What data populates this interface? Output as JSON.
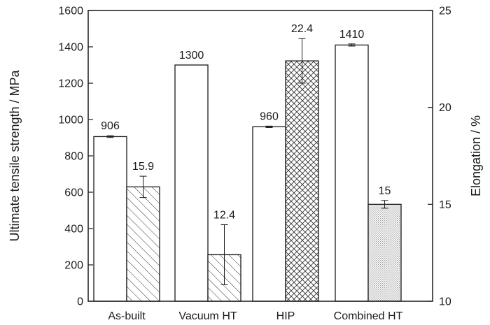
{
  "chart_data": {
    "type": "bar",
    "categories": [
      "As-built",
      "Vacuum HT",
      "HIP",
      "Combined HT"
    ],
    "series": [
      {
        "axis": "left",
        "fill": "white",
        "values": [
          906,
          1300,
          960,
          1410
        ],
        "errors": [
          5,
          0,
          4,
          6
        ],
        "labels": [
          "906",
          "1300",
          "960",
          "1410"
        ]
      },
      {
        "axis": "right",
        "fill_patterns": [
          "diagonal-hatch",
          "diagonal-hatch",
          "crosshatch",
          "dotted"
        ],
        "values": [
          15.9,
          12.4,
          22.4,
          15.0
        ],
        "errors": [
          0.55,
          1.55,
          1.15,
          0.2
        ],
        "labels": [
          "15.9",
          "12.4",
          "22.4",
          "15"
        ]
      }
    ],
    "ylabel": "Ultimate tensile strength / MPa",
    "ylim": [
      0,
      1600
    ],
    "yticks": [
      "0",
      "200",
      "400",
      "600",
      "800",
      "1000",
      "1200",
      "1400",
      "1600"
    ],
    "y2label": "Elongation / %",
    "y2lim": [
      10,
      25
    ],
    "y2ticks": [
      "10",
      "15",
      "20",
      "25"
    ],
    "grid": false,
    "legend": "none"
  },
  "colors": {
    "stroke": "#1a1a1a",
    "background": "#ffffff"
  }
}
